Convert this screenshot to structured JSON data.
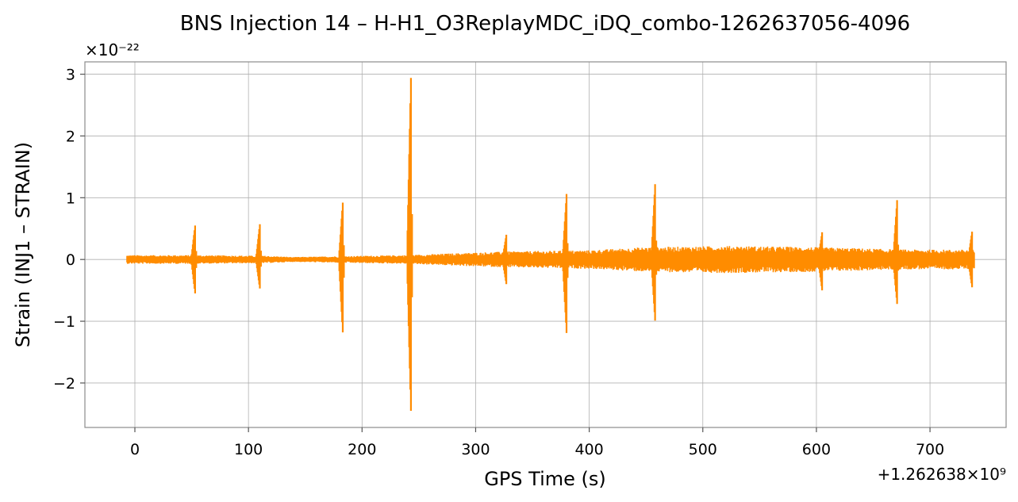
{
  "chart_data": {
    "type": "line",
    "title": "BNS Injection 14 – H-H1_O3ReplayMDC_iDQ_combo-1262637056-4096",
    "xlabel": "GPS Time (s)",
    "ylabel": "Strain (INJ1 – STRAIN)",
    "y_multiplier": "×10⁻²²",
    "x_offset": "+1.262638×10⁹",
    "xlim": [
      -44,
      767
    ],
    "ylim": [
      -2.72,
      3.2
    ],
    "x_ticks": [
      0,
      100,
      200,
      300,
      400,
      500,
      600,
      700
    ],
    "x_tick_labels": [
      "0",
      "100",
      "200",
      "300",
      "400",
      "500",
      "600",
      "700"
    ],
    "y_ticks": [
      -2,
      -1,
      0,
      1,
      2,
      3
    ],
    "y_tick_labels": [
      "−2",
      "−1",
      "0",
      "1",
      "2",
      "3"
    ],
    "grid": true,
    "line_color": "#ff8c00",
    "series": [
      {
        "x_start": -7,
        "x_end": 739,
        "baseline_envelope": [
          [
            -7,
            0.07
          ],
          [
            50,
            0.07
          ],
          [
            115,
            0.06
          ],
          [
            140,
            0.04
          ],
          [
            170,
            0.05
          ],
          [
            200,
            0.06
          ],
          [
            240,
            0.07
          ],
          [
            280,
            0.1
          ],
          [
            330,
            0.13
          ],
          [
            400,
            0.15
          ],
          [
            450,
            0.2
          ],
          [
            520,
            0.22
          ],
          [
            600,
            0.2
          ],
          [
            680,
            0.16
          ],
          [
            739,
            0.16
          ]
        ],
        "spikes": [
          {
            "x": 53,
            "max": 0.55,
            "min": -0.55
          },
          {
            "x": 110,
            "max": 0.57,
            "min": -0.47
          },
          {
            "x": 183,
            "max": 0.92,
            "min": -1.18
          },
          {
            "x": 243,
            "max": 2.94,
            "min": -2.45
          },
          {
            "x": 327,
            "max": 0.4,
            "min": -0.4
          },
          {
            "x": 380,
            "max": 1.06,
            "min": -1.19
          },
          {
            "x": 458,
            "max": 1.22,
            "min": -0.99
          },
          {
            "x": 605,
            "max": 0.44,
            "min": -0.5
          },
          {
            "x": 671,
            "max": 0.96,
            "min": -0.72
          },
          {
            "x": 737,
            "max": 0.45,
            "min": -0.45
          }
        ]
      }
    ]
  }
}
